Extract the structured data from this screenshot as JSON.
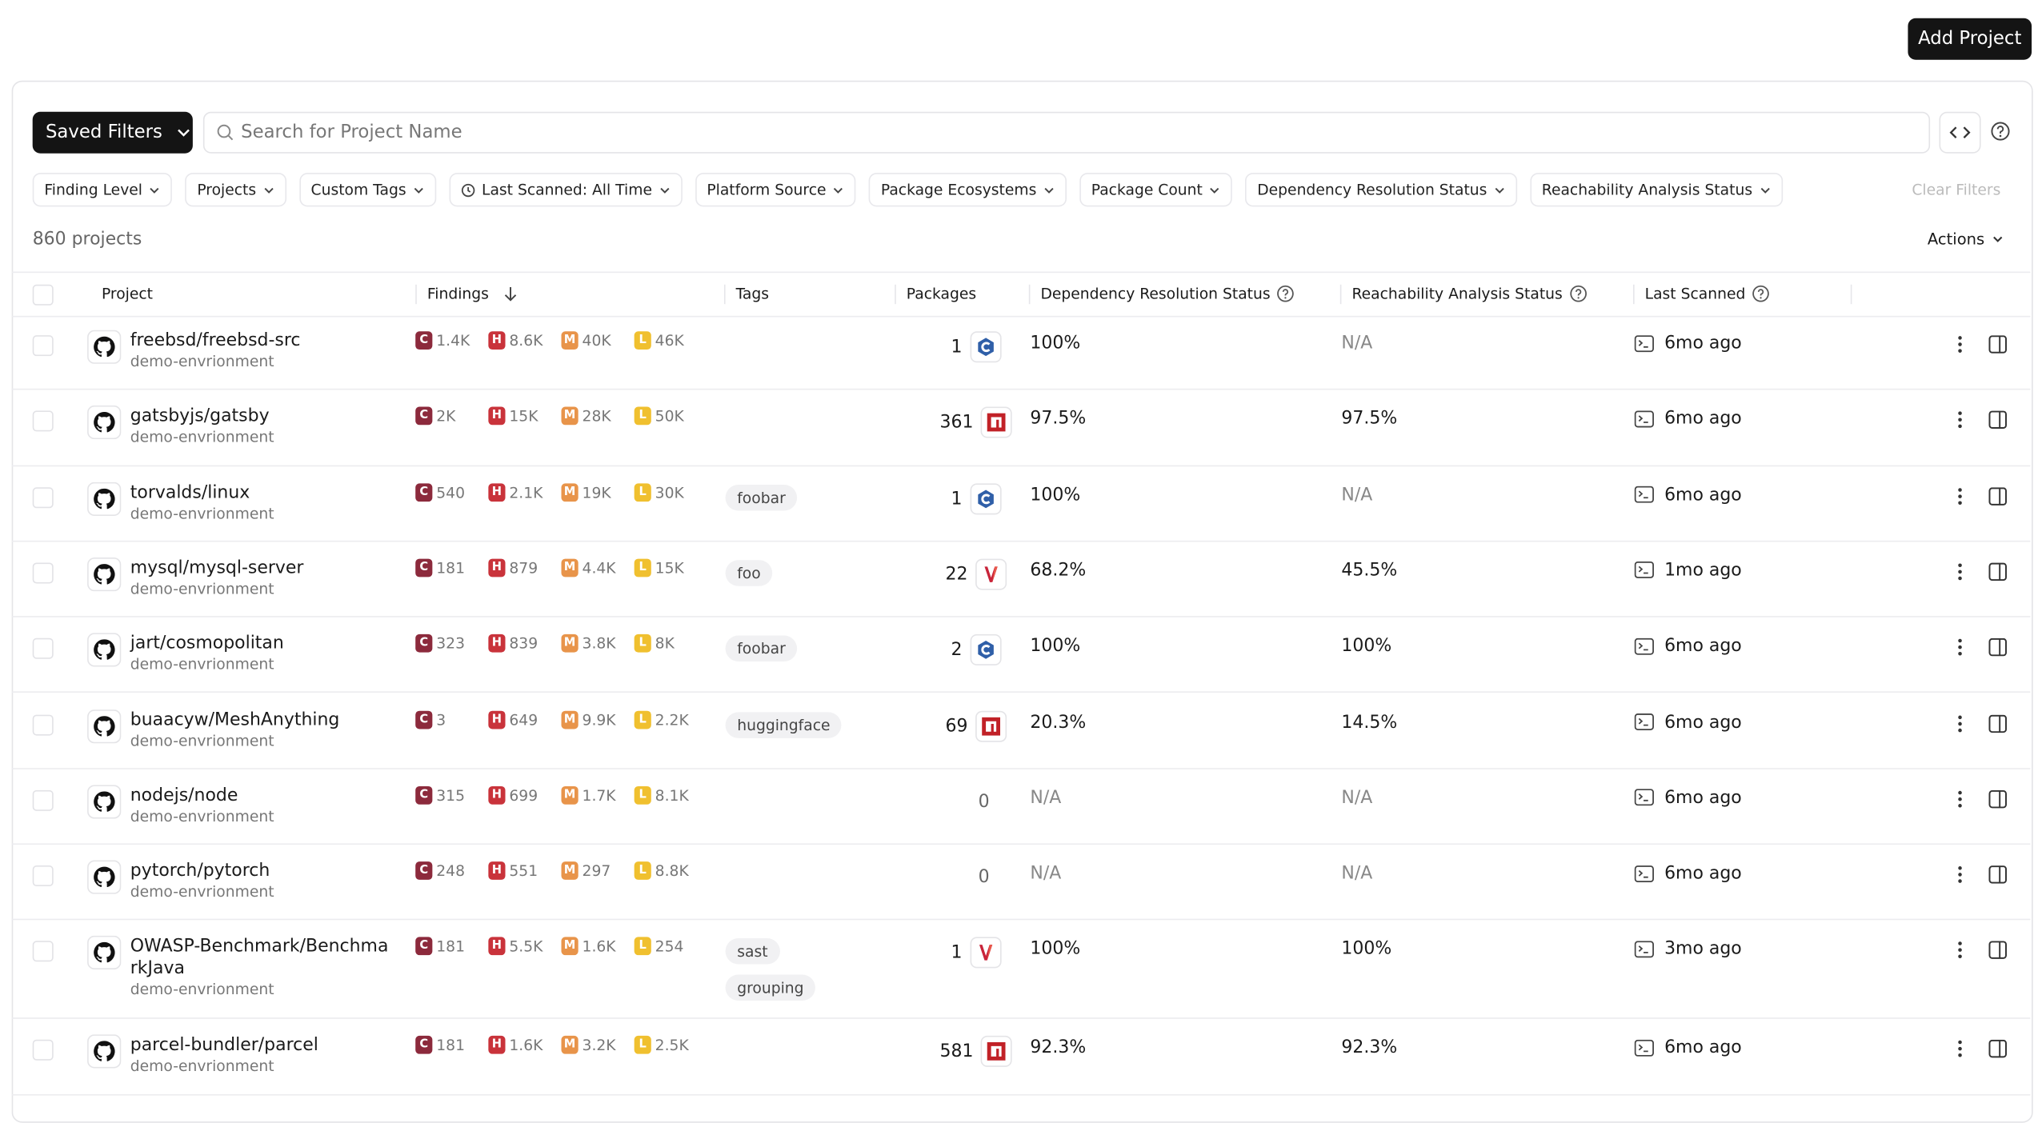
{
  "header": {
    "add_button": "Add Project"
  },
  "toolbar": {
    "saved_filters": "Saved Filters",
    "search_placeholder": "Search for Project Name"
  },
  "filters": [
    "Finding Level",
    "Projects",
    "Custom Tags",
    "Last Scanned: All Time",
    "Platform Source",
    "Package Ecosystems",
    "Package Count",
    "Dependency Resolution Status",
    "Reachability Analysis Status"
  ],
  "clear_filters": "Clear Filters",
  "project_count": "860 projects",
  "actions": "Actions",
  "table": {
    "columns": [
      "Project",
      "Findings",
      "Tags",
      "Packages",
      "Dependency Resolution Status",
      "Reachability Analysis Status",
      "Last Scanned"
    ],
    "severity_badges": [
      "C",
      "H",
      "M",
      "L"
    ],
    "rows": [
      {
        "project": "freebsd/freebsd-src",
        "environment": "demo-envrionment",
        "findings": [
          "1.4K",
          "8.6K",
          "40K",
          "46K"
        ],
        "tags": [],
        "packages": "1",
        "package_icon": "c",
        "dependency_resolution": "100%",
        "reachability": "N/A",
        "last_scanned": "6mo ago"
      },
      {
        "project": "gatsbyjs/gatsby",
        "environment": "demo-envrionment",
        "findings": [
          "2K",
          "15K",
          "28K",
          "50K"
        ],
        "tags": [],
        "packages": "361",
        "package_icon": "npm",
        "dependency_resolution": "97.5%",
        "reachability": "97.5%",
        "last_scanned": "6mo ago"
      },
      {
        "project": "torvalds/linux",
        "environment": "demo-envrionment",
        "findings": [
          "540",
          "2.1K",
          "19K",
          "30K"
        ],
        "tags": [
          "foobar"
        ],
        "packages": "1",
        "package_icon": "c",
        "dependency_resolution": "100%",
        "reachability": "N/A",
        "last_scanned": "6mo ago"
      },
      {
        "project": "mysql/mysql-server",
        "environment": "demo-envrionment",
        "findings": [
          "181",
          "879",
          "4.4K",
          "15K"
        ],
        "tags": [
          "foo"
        ],
        "packages": "22",
        "package_icon": "maven",
        "dependency_resolution": "68.2%",
        "reachability": "45.5%",
        "last_scanned": "1mo ago"
      },
      {
        "project": "jart/cosmopolitan",
        "environment": "demo-envrionment",
        "findings": [
          "323",
          "839",
          "3.8K",
          "8K"
        ],
        "tags": [
          "foobar"
        ],
        "packages": "2",
        "package_icon": "c",
        "dependency_resolution": "100%",
        "reachability": "100%",
        "last_scanned": "6mo ago"
      },
      {
        "project": "buaacyw/MeshAnything",
        "environment": "demo-envrionment",
        "findings": [
          "3",
          "649",
          "9.9K",
          "2.2K"
        ],
        "tags": [
          "huggingface"
        ],
        "packages": "69",
        "package_icon": "npm",
        "dependency_resolution": "20.3%",
        "reachability": "14.5%",
        "last_scanned": "6mo ago"
      },
      {
        "project": "nodejs/node",
        "environment": "demo-envrionment",
        "findings": [
          "315",
          "699",
          "1.7K",
          "8.1K"
        ],
        "tags": [],
        "packages": "0",
        "package_icon": null,
        "dependency_resolution": "N/A",
        "reachability": "N/A",
        "last_scanned": "6mo ago"
      },
      {
        "project": "pytorch/pytorch",
        "environment": "demo-envrionment",
        "findings": [
          "248",
          "551",
          "297",
          "8.8K"
        ],
        "tags": [],
        "packages": "0",
        "package_icon": null,
        "dependency_resolution": "N/A",
        "reachability": "N/A",
        "last_scanned": "6mo ago"
      },
      {
        "project": "OWASP-Benchmark/BenchmarkJava",
        "environment": "demo-envrionment",
        "findings": [
          "181",
          "5.5K",
          "1.6K",
          "254"
        ],
        "tags": [
          "sast",
          "grouping"
        ],
        "packages": "1",
        "package_icon": "maven",
        "dependency_resolution": "100%",
        "reachability": "100%",
        "last_scanned": "3mo ago"
      },
      {
        "project": "parcel-bundler/parcel",
        "environment": "demo-envrionment",
        "findings": [
          "181",
          "1.6K",
          "3.2K",
          "2.5K"
        ],
        "tags": [],
        "packages": "581",
        "package_icon": "npm",
        "dependency_resolution": "92.3%",
        "reachability": "92.3%",
        "last_scanned": "6mo ago"
      }
    ]
  }
}
